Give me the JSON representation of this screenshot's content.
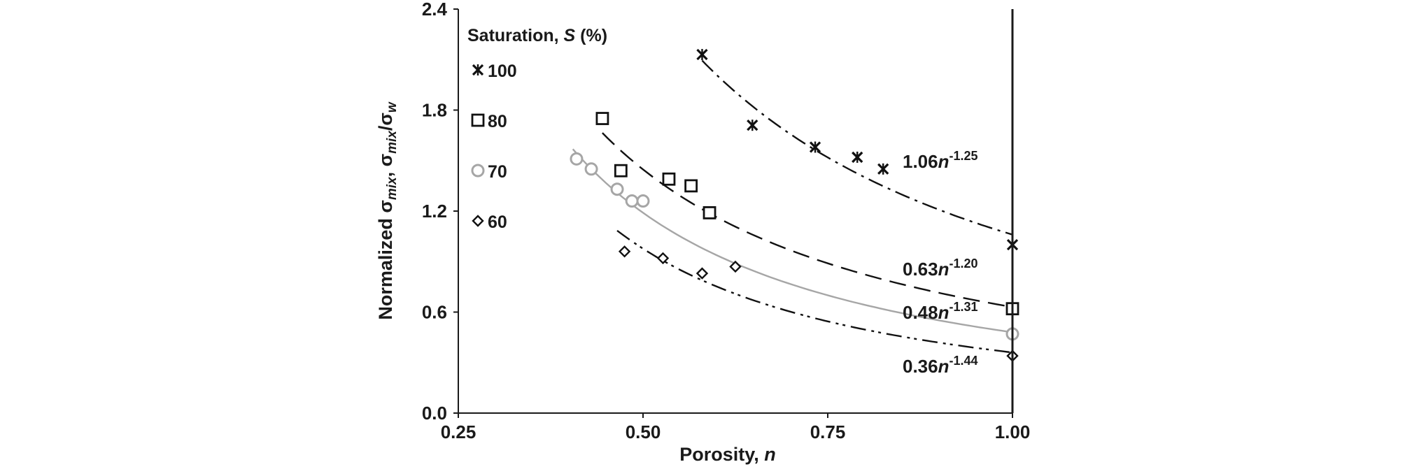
{
  "chart_data": {
    "type": "scatter",
    "xlabel_prefix": "Porosity, ",
    "xlabel_var": "n",
    "ylabel_parts": {
      "prefix": "Normalized σ",
      "sub1": "mix",
      "mid": ", σ",
      "sub2": "mix",
      "slash": "/σ",
      "sub3": "w"
    },
    "xlim": [
      0.25,
      1.0
    ],
    "ylim": [
      0.0,
      2.4
    ],
    "x_ticks": [
      "0.25",
      "0.50",
      "0.75",
      "1.00"
    ],
    "x_tick_values": [
      0.25,
      0.5,
      0.75,
      1.0
    ],
    "y_ticks": [
      "0.0",
      "0.6",
      "1.2",
      "1.8",
      "2.4"
    ],
    "y_tick_values": [
      0.0,
      0.6,
      1.2,
      1.8,
      2.4
    ],
    "grid": false,
    "legend": {
      "title_prefix": "Saturation, ",
      "title_var": "S",
      "title_suffix": " (%)",
      "placement": "top-left"
    },
    "series": [
      {
        "name": "100",
        "marker": "asterisk",
        "color": "#111111",
        "points": [
          [
            0.58,
            2.13
          ],
          [
            0.648,
            1.71
          ],
          [
            0.733,
            1.58
          ],
          [
            0.79,
            1.52
          ],
          [
            0.825,
            1.45
          ],
          [
            1.0,
            1.0
          ]
        ],
        "fit": {
          "a": 1.06,
          "b": -1.25,
          "x_from": 0.58,
          "x_to": 1.0,
          "dash": "22 8 4 8",
          "color": "#111111"
        },
        "equation": {
          "coef": "1.06",
          "var": "n",
          "exp": "-1.25"
        }
      },
      {
        "name": "80",
        "marker": "square",
        "color": "#111111",
        "points": [
          [
            0.445,
            1.75
          ],
          [
            0.47,
            1.44
          ],
          [
            0.535,
            1.39
          ],
          [
            0.565,
            1.35
          ],
          [
            0.59,
            1.19
          ],
          [
            1.0,
            0.62
          ]
        ],
        "fit": {
          "a": 0.63,
          "b": -1.2,
          "x_from": 0.445,
          "x_to": 1.0,
          "dash": "24 12",
          "color": "#111111"
        },
        "equation": {
          "coef": "0.63",
          "var": "n",
          "exp": "-1.20"
        }
      },
      {
        "name": "70",
        "marker": "circle",
        "color": "#a6a6a6",
        "points": [
          [
            0.41,
            1.51
          ],
          [
            0.43,
            1.45
          ],
          [
            0.465,
            1.33
          ],
          [
            0.485,
            1.26
          ],
          [
            0.5,
            1.26
          ],
          [
            1.0,
            0.47
          ]
        ],
        "fit": {
          "a": 0.48,
          "b": -1.31,
          "x_from": 0.405,
          "x_to": 1.0,
          "dash": "",
          "color": "#a6a6a6"
        },
        "equation": {
          "coef": "0.48",
          "var": "n",
          "exp": "-1.31"
        }
      },
      {
        "name": "60",
        "marker": "diamond",
        "color": "#111111",
        "points": [
          [
            0.475,
            0.96
          ],
          [
            0.527,
            0.92
          ],
          [
            0.58,
            0.83
          ],
          [
            0.625,
            0.87
          ],
          [
            1.0,
            0.34
          ]
        ],
        "fit": {
          "a": 0.36,
          "b": -1.44,
          "x_from": 0.465,
          "x_to": 1.0,
          "dash": "22 8 4 6 4 8",
          "color": "#111111"
        },
        "equation": {
          "coef": "0.36",
          "var": "n",
          "exp": "-1.44"
        }
      }
    ]
  }
}
